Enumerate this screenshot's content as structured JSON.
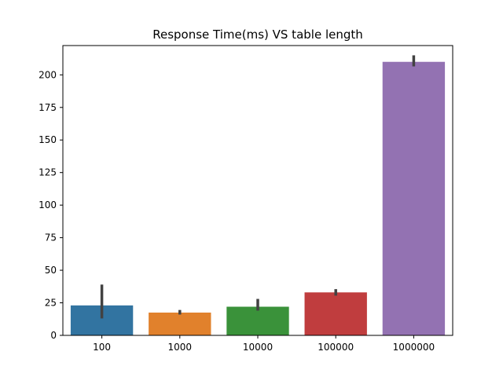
{
  "chart_data": {
    "type": "bar",
    "title": "Response Time(ms) VS table length",
    "xlabel": "",
    "ylabel": "",
    "categories": [
      "100",
      "1000",
      "10000",
      "100000",
      "1000000"
    ],
    "values": [
      23.0,
      17.5,
      22.0,
      33.0,
      210.0
    ],
    "error_bars": [
      [
        13.0,
        39.0
      ],
      [
        16.0,
        19.5
      ],
      [
        19.0,
        28.0
      ],
      [
        30.5,
        35.5
      ],
      [
        206.5,
        215.0
      ]
    ],
    "colors": [
      "#3274a1",
      "#e1812c",
      "#3a923a",
      "#c03d3e",
      "#9372b2"
    ],
    "ylim": [
      0,
      222.5
    ],
    "yticks": [
      0,
      25,
      50,
      75,
      100,
      125,
      150,
      175,
      200
    ],
    "grid": false,
    "legend": "none"
  }
}
